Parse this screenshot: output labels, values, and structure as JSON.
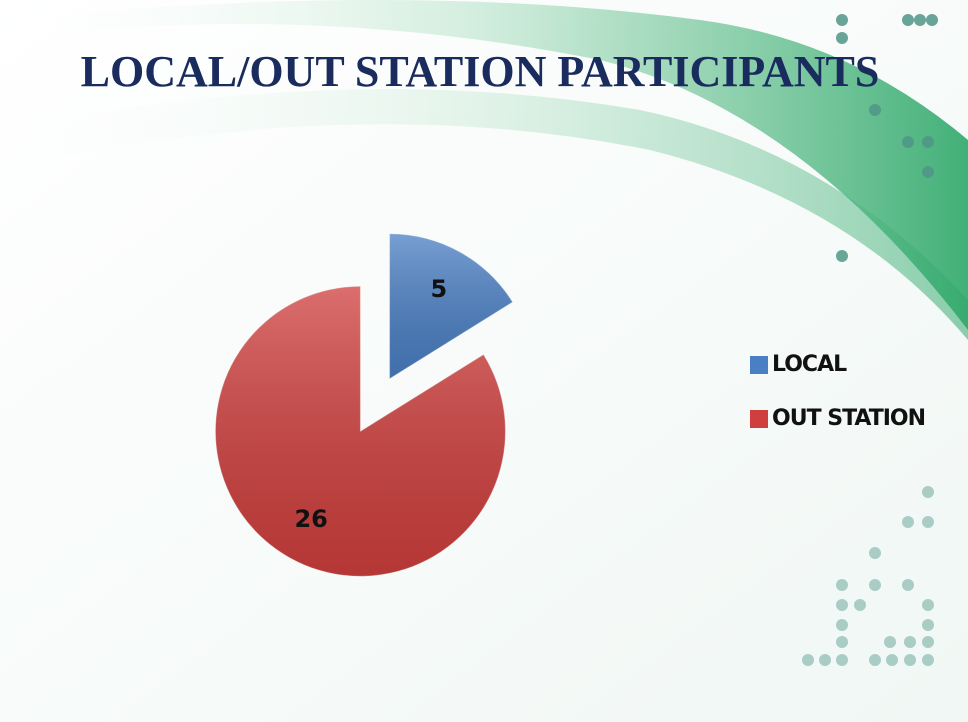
{
  "chart_data": {
    "type": "pie",
    "title": "LOCAL/OUT STATION PARTICIPANTS",
    "categories": [
      "LOCAL",
      "OUT STATION"
    ],
    "values": [
      5,
      26
    ],
    "colors": [
      "#4a7fc4",
      "#cf3f3d"
    ],
    "legend": "right"
  }
}
